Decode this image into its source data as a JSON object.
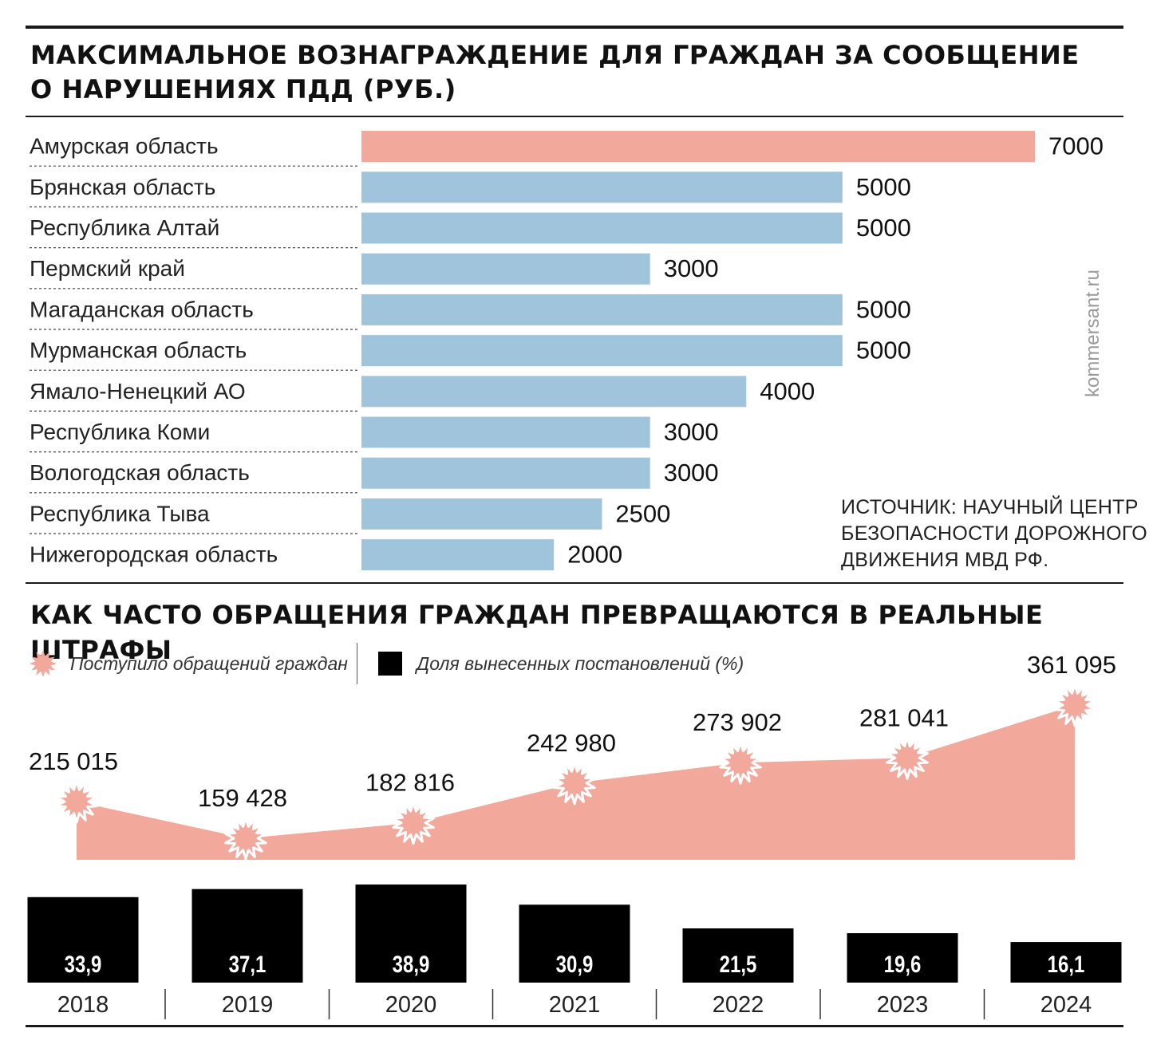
{
  "title1_line1": "МАКСИМАЛЬНОЕ ВОЗНАГРАЖДЕНИЕ ДЛЯ ГРАЖДАН ЗА СООБЩЕНИЕ",
  "title1_line2": "О НАРУШЕНИЯХ ПДД (РУБ.)",
  "title2": "КАК ЧАСТО ОБРАЩЕНИЯ ГРАЖДАН ПРЕВРАЩАЮТСЯ В РЕАЛЬНЫЕ ШТРАФЫ",
  "source_lines": [
    "ИСТОЧНИК: НАУЧНЫЙ ЦЕНТР",
    "БЕЗОПАСНОСТИ ДОРОЖНОГО",
    "ДВИЖЕНИЯ МВД РФ."
  ],
  "credit": "kommersant.ru",
  "colors": {
    "highlight": "#f2a89b",
    "bar": "#a1c4dd",
    "area": "#f2a89b",
    "dark": "#000000"
  },
  "chart_data": [
    {
      "type": "bar",
      "orientation": "horizontal",
      "title": "МАКСИМАЛЬНОЕ ВОЗНАГРАЖДЕНИЕ ДЛЯ ГРАЖДАН ЗА СООБЩЕНИЕ О НАРУШЕНИЯХ ПДД (РУБ.)",
      "categories": [
        "Амурская область",
        "Брянская область",
        "Республика Алтай",
        "Пермский край",
        "Магаданская область",
        "Мурманская область",
        "Ямало-Ненецкий АО",
        "Республика Коми",
        "Вологодская область",
        "Республика Тыва",
        "Нижегородская область"
      ],
      "values": [
        7000,
        5000,
        5000,
        3000,
        5000,
        5000,
        4000,
        3000,
        3000,
        2500,
        2000
      ],
      "value_labels": [
        "7000",
        "5000",
        "5000",
        "3000",
        "5000",
        "5000",
        "4000",
        "3000",
        "3000",
        "2500",
        "2000"
      ],
      "highlight_index": 0,
      "xlim": [
        0,
        7000
      ],
      "grid": false
    },
    {
      "type": "area",
      "title": "КАК ЧАСТО ОБРАЩЕНИЯ ГРАЖДАН ПРЕВРАЩАЮТСЯ В РЕАЛЬНЫЕ ШТРАФЫ",
      "series": [
        {
          "name": "Поступило обращений граждан",
          "values": [
            215015,
            159428,
            182816,
            242980,
            273902,
            281041,
            361095
          ]
        }
      ],
      "x": [
        "2018",
        "2019",
        "2020",
        "2021",
        "2022",
        "2023",
        "2024"
      ],
      "value_labels": [
        "215 015",
        "159 428",
        "182 816",
        "242 980",
        "273 902",
        "281 041",
        "361 095"
      ],
      "marker": "starburst"
    },
    {
      "type": "bar",
      "series": [
        {
          "name": "Доля вынесенных постановлений (%)",
          "values": [
            33.9,
            37.1,
            38.9,
            30.9,
            21.5,
            19.6,
            16.1
          ]
        }
      ],
      "categories": [
        "2018",
        "2019",
        "2020",
        "2021",
        "2022",
        "2023",
        "2024"
      ],
      "value_labels": [
        "33,9",
        "37,1",
        "38,9",
        "30,9",
        "21,5",
        "19,6",
        "16,1"
      ],
      "ylim": [
        0,
        38.9
      ]
    }
  ],
  "legend": [
    {
      "label": "Поступило обращений граждан",
      "icon": "starburst-icon"
    },
    {
      "label": "Доля вынесенных постановлений (%)",
      "icon": "black-square-icon"
    }
  ]
}
